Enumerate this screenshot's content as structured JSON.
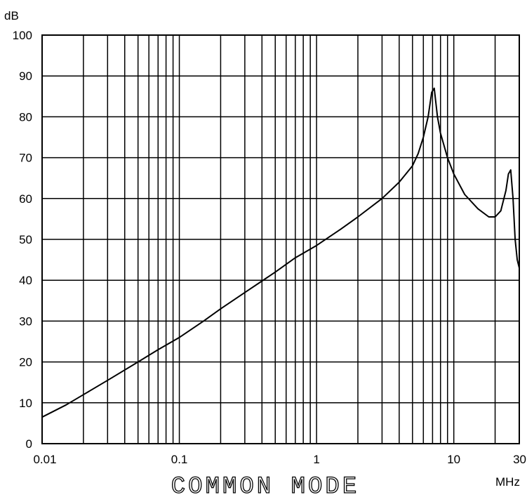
{
  "chart_data": {
    "type": "line",
    "title": "COMMON MODE",
    "xlabel": "MHz",
    "ylabel": "dB",
    "x_scale": "log",
    "xlim": [
      0.01,
      30
    ],
    "ylim": [
      0,
      100
    ],
    "grid": true,
    "x_ticks": [
      "0.01",
      "0.1",
      "1",
      "10",
      "30"
    ],
    "y_ticks": [
      "0",
      "10",
      "20",
      "30",
      "40",
      "50",
      "60",
      "70",
      "80",
      "90",
      "100"
    ],
    "colors": {
      "line": "#000000",
      "grid": "#000000",
      "background": "#ffffff"
    },
    "series": [
      {
        "x": [
          0.01,
          0.015,
          0.02,
          0.03,
          0.05,
          0.07,
          0.1,
          0.15,
          0.2,
          0.3,
          0.5,
          0.7,
          1,
          1.5,
          2,
          3,
          4,
          5,
          5.5,
          6,
          6.5,
          6.9,
          7.2,
          7.6,
          8,
          9,
          10,
          12,
          15,
          18,
          20,
          22,
          24,
          25,
          26,
          27,
          28,
          29,
          30
        ],
        "y": [
          6.5,
          9.5,
          12,
          15.5,
          20,
          23,
          26,
          30,
          33,
          37,
          42,
          45.5,
          48.5,
          52.5,
          55.5,
          60,
          64,
          68,
          71,
          75,
          80,
          86,
          87,
          80,
          76,
          70,
          66,
          61,
          57.5,
          55.5,
          55.5,
          57,
          62,
          66,
          67,
          60,
          50,
          45,
          43
        ]
      }
    ]
  }
}
